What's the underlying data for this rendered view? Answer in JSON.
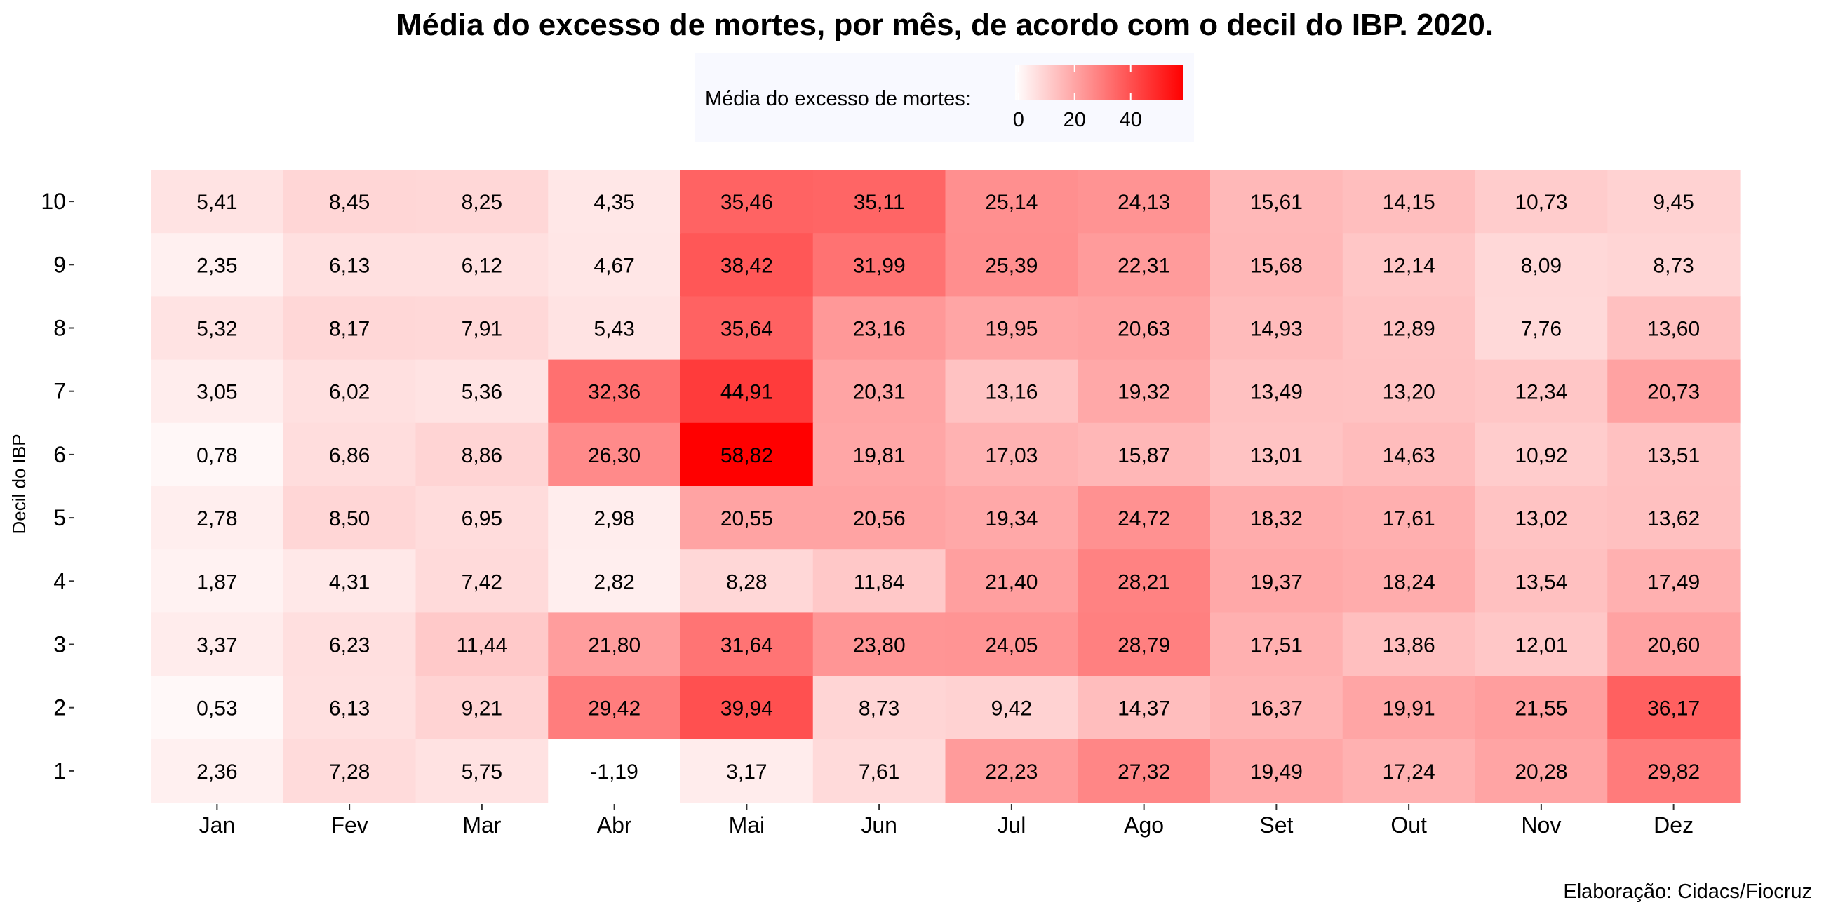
{
  "chart_data": {
    "type": "heatmap",
    "title": "Média do excesso de mortes, por mês, de acordo com o decil do IBP. 2020.",
    "xlabel": "",
    "ylabel": "Decil do IBP",
    "caption": "Elaboração: Cidacs/Fiocruz",
    "legend": {
      "title": "Média do excesso de mortes:",
      "placement": "top",
      "ticks": [
        "0",
        "20",
        "40"
      ],
      "tick_values": [
        0,
        20,
        40
      ],
      "range": [
        -1.19,
        58.82
      ],
      "low_color": "#ffffff",
      "high_color": "#ff0000"
    },
    "x": [
      "Jan",
      "Fev",
      "Mar",
      "Abr",
      "Mai",
      "Jun",
      "Jul",
      "Ago",
      "Set",
      "Out",
      "Nov",
      "Dez"
    ],
    "y": [
      "10",
      "9",
      "8",
      "7",
      "6",
      "5",
      "4",
      "3",
      "2",
      "1"
    ],
    "labels": [
      [
        "5,41",
        "8,45",
        "8,25",
        "4,35",
        "35,46",
        "35,11",
        "25,14",
        "24,13",
        "15,61",
        "14,15",
        "10,73",
        "9,45"
      ],
      [
        "2,35",
        "6,13",
        "6,12",
        "4,67",
        "38,42",
        "31,99",
        "25,39",
        "22,31",
        "15,68",
        "12,14",
        "8,09",
        "8,73"
      ],
      [
        "5,32",
        "8,17",
        "7,91",
        "5,43",
        "35,64",
        "23,16",
        "19,95",
        "20,63",
        "14,93",
        "12,89",
        "7,76",
        "13,60"
      ],
      [
        "3,05",
        "6,02",
        "5,36",
        "32,36",
        "44,91",
        "20,31",
        "13,16",
        "19,32",
        "13,49",
        "13,20",
        "12,34",
        "20,73"
      ],
      [
        "0,78",
        "6,86",
        "8,86",
        "26,30",
        "58,82",
        "19,81",
        "17,03",
        "15,87",
        "13,01",
        "14,63",
        "10,92",
        "13,51"
      ],
      [
        "2,78",
        "8,50",
        "6,95",
        "2,98",
        "20,55",
        "20,56",
        "19,34",
        "24,72",
        "18,32",
        "17,61",
        "13,02",
        "13,62"
      ],
      [
        "1,87",
        "4,31",
        "7,42",
        "2,82",
        "8,28",
        "11,84",
        "21,40",
        "28,21",
        "19,37",
        "18,24",
        "13,54",
        "17,49"
      ],
      [
        "3,37",
        "6,23",
        "11,44",
        "21,80",
        "31,64",
        "23,80",
        "24,05",
        "28,79",
        "17,51",
        "13,86",
        "12,01",
        "20,60"
      ],
      [
        "0,53",
        "6,13",
        "9,21",
        "29,42",
        "39,94",
        "8,73",
        "9,42",
        "14,37",
        "16,37",
        "19,91",
        "21,55",
        "36,17"
      ],
      [
        "2,36",
        "7,28",
        "5,75",
        "-1,19",
        "3,17",
        "7,61",
        "22,23",
        "27,32",
        "19,49",
        "17,24",
        "20,28",
        "29,82"
      ]
    ],
    "grid": false
  }
}
